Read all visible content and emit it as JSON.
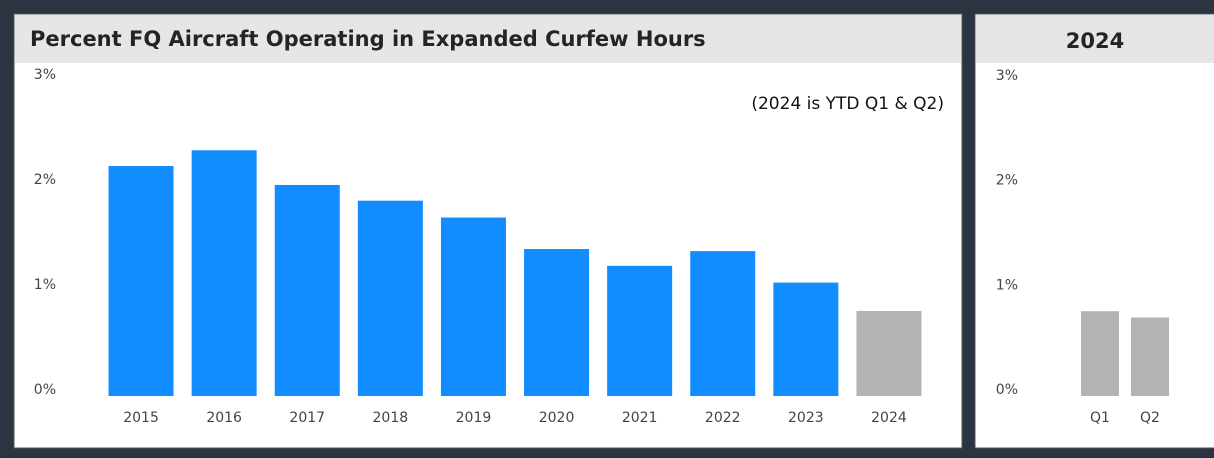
{
  "chart_data": [
    {
      "type": "bar",
      "title": "Percent FQ Aircraft Operating in Expanded Curfew Hours",
      "annotation": "(2024 is YTD Q1 & Q2)",
      "categories": [
        "2015",
        "2016",
        "2017",
        "2018",
        "2019",
        "2020",
        "2021",
        "2022",
        "2023",
        "2024"
      ],
      "values": [
        2.19,
        2.34,
        2.01,
        1.86,
        1.7,
        1.4,
        1.24,
        1.38,
        1.08,
        0.81
      ],
      "colors": [
        "#118dff",
        "#118dff",
        "#118dff",
        "#118dff",
        "#118dff",
        "#118dff",
        "#118dff",
        "#118dff",
        "#118dff",
        "#b3b3b3"
      ],
      "ylim": [
        0,
        3
      ],
      "yticks": [
        {
          "value": 0,
          "label": "0%"
        },
        {
          "value": 1,
          "label": "1%"
        },
        {
          "value": 2,
          "label": "2%"
        },
        {
          "value": 3,
          "label": "3%"
        }
      ],
      "grid": true
    },
    {
      "type": "bar",
      "title": "2024",
      "categories": [
        "Q1",
        "Q2"
      ],
      "values": [
        0.81,
        0.75
      ],
      "color": "#b3b3b3",
      "ylim": [
        0,
        3
      ],
      "yticks": [
        {
          "value": 0,
          "label": "0%"
        },
        {
          "value": 1,
          "label": "1%"
        },
        {
          "value": 2,
          "label": "2%"
        },
        {
          "value": 3,
          "label": "3%"
        }
      ],
      "grid": true
    }
  ]
}
